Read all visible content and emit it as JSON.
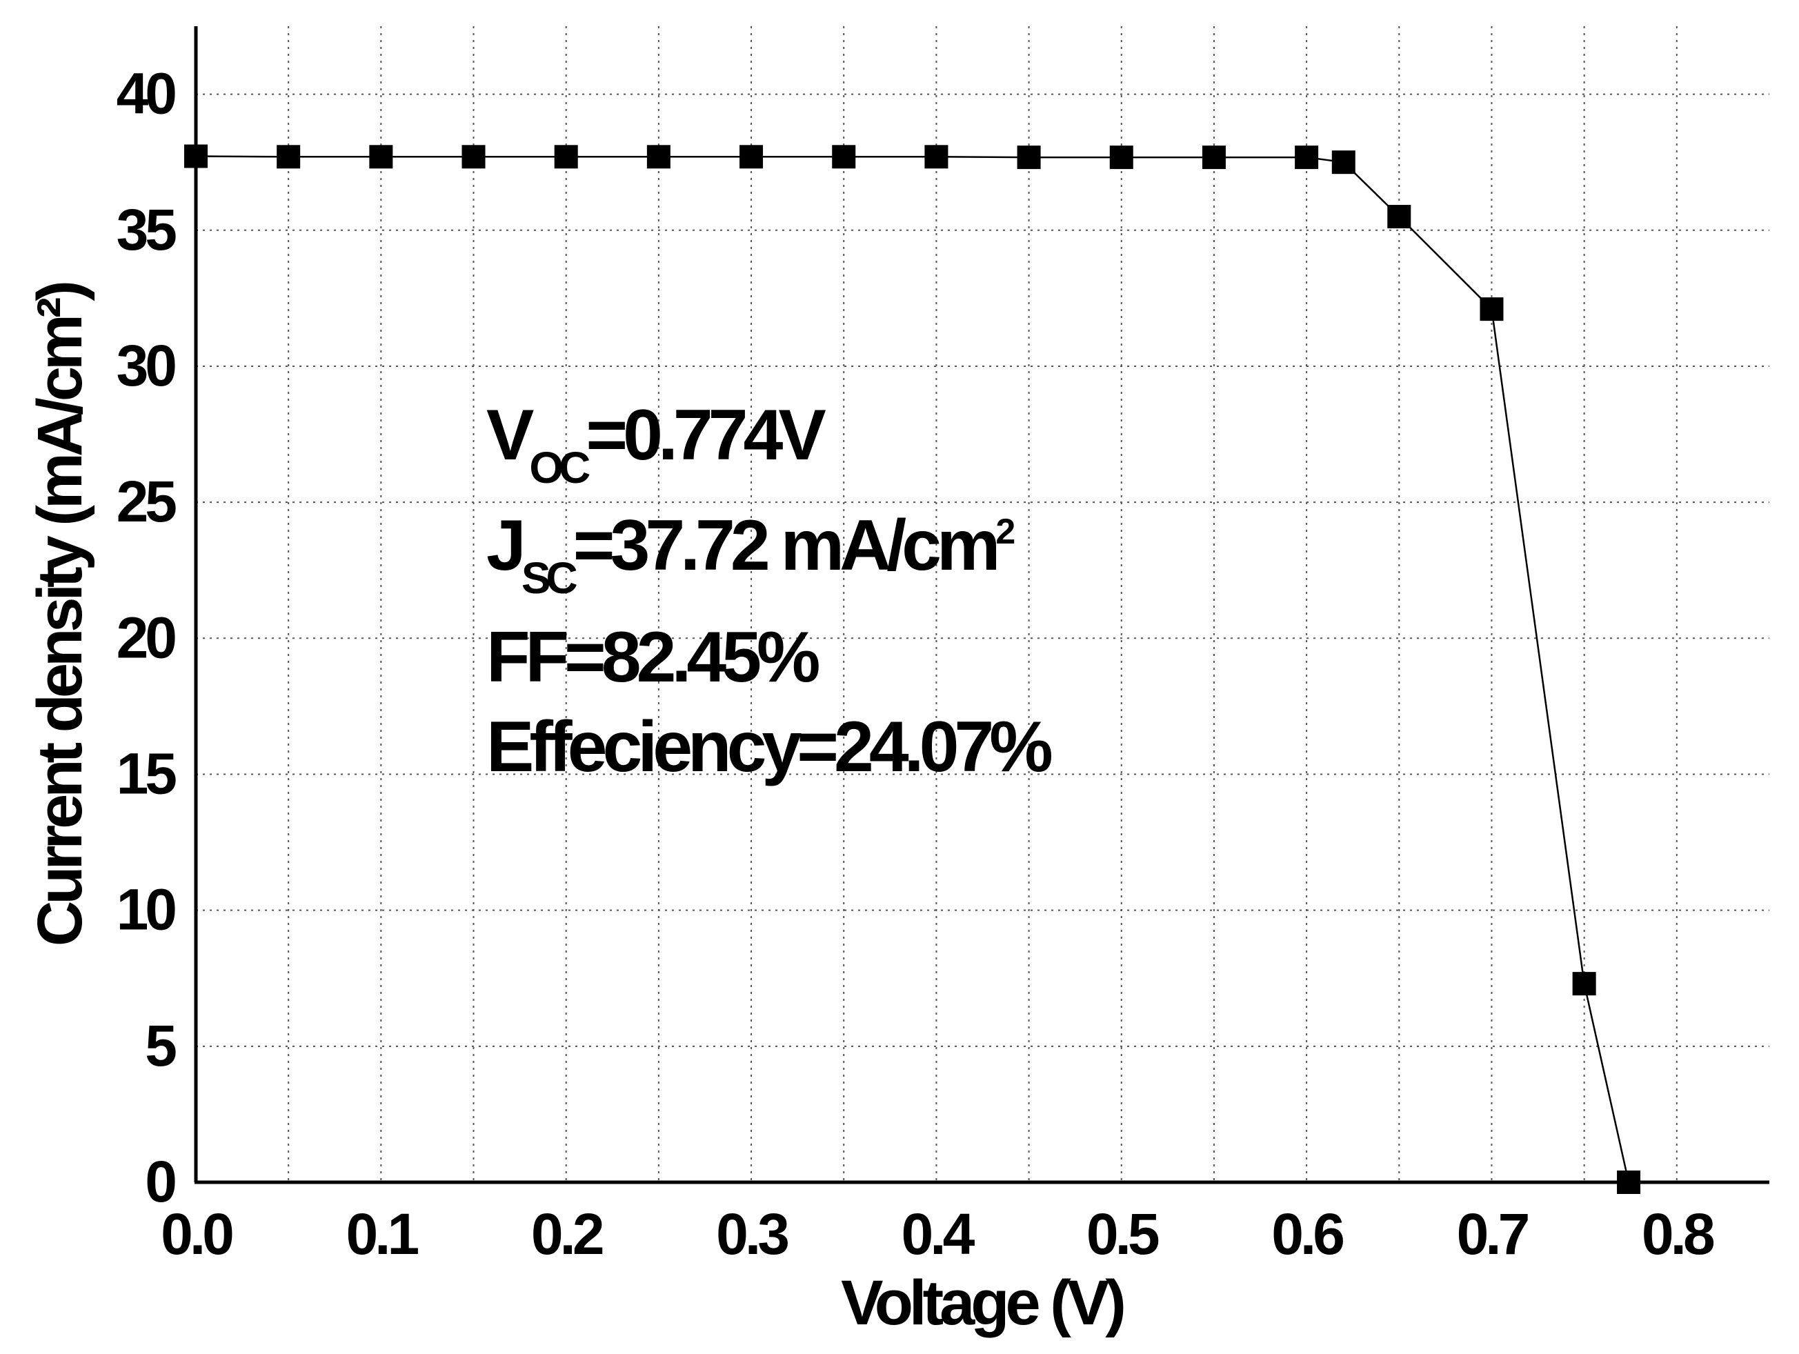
{
  "chart_data": {
    "type": "line",
    "xlabel": "Voltage (V)",
    "ylabel": "Current density (mA/cm²)",
    "xlim": [
      0.0,
      0.85
    ],
    "ylim": [
      0,
      42.5
    ],
    "xticks": [
      0.0,
      0.1,
      0.2,
      0.3,
      0.4,
      0.5,
      0.6,
      0.7,
      0.8
    ],
    "xtick_labels": [
      "0.0",
      "0.1",
      "0.2",
      "0.3",
      "0.4",
      "0.5",
      "0.6",
      "0.7",
      "0.8"
    ],
    "xgrid": [
      0.05,
      0.1,
      0.15,
      0.2,
      0.25,
      0.3,
      0.35,
      0.4,
      0.45,
      0.5,
      0.55,
      0.6,
      0.65,
      0.7,
      0.75,
      0.8
    ],
    "yticks": [
      0,
      5,
      10,
      15,
      20,
      25,
      30,
      35,
      40
    ],
    "ytick_labels": [
      "0",
      "5",
      "10",
      "15",
      "20",
      "25",
      "30",
      "35",
      "40"
    ],
    "ygrid": [
      5,
      10,
      15,
      20,
      25,
      30,
      35,
      40
    ],
    "grid": "dotted",
    "series": [
      {
        "marker": "square",
        "color": "#000000",
        "x": [
          0.0,
          0.05,
          0.1,
          0.15,
          0.2,
          0.25,
          0.3,
          0.35,
          0.4,
          0.45,
          0.5,
          0.55,
          0.6,
          0.62,
          0.65,
          0.7,
          0.75,
          0.774
        ],
        "y": [
          37.72,
          37.7,
          37.7,
          37.7,
          37.7,
          37.7,
          37.7,
          37.7,
          37.7,
          37.68,
          37.68,
          37.68,
          37.68,
          37.5,
          35.5,
          32.1,
          7.3,
          0.0
        ]
      }
    ],
    "annotations": {
      "voc": {
        "main": "V",
        "sub": "OC",
        "rest": "=0.774V"
      },
      "jsc": {
        "main": "J",
        "sub": "SC",
        "rest": "=37.72 mA/cm",
        "sup": "2"
      },
      "ff": "FF=82.45%",
      "efficiency": "Effeciency=24.07%"
    }
  }
}
